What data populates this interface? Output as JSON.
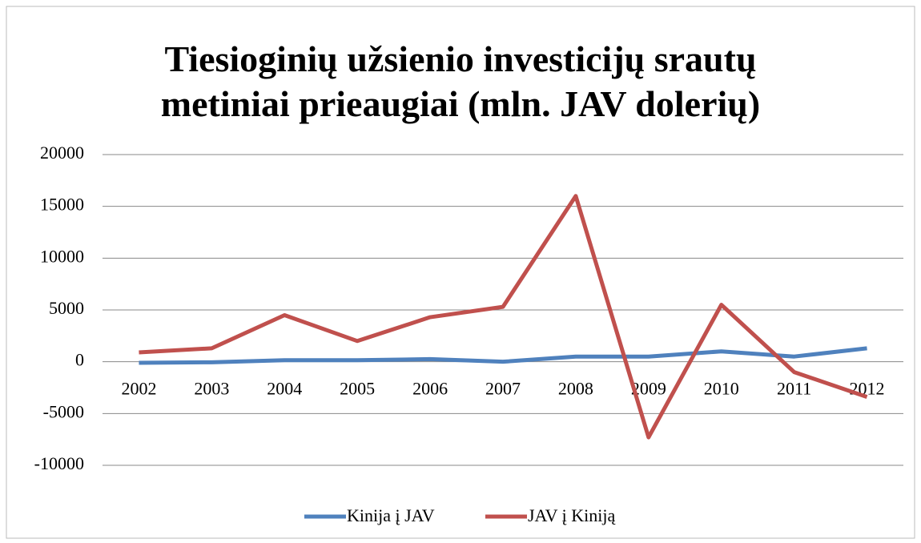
{
  "chart_data": {
    "type": "line",
    "title": "Tiesioginių užsienio investicijų srautų metiniai prieaugiai (mln. JAV dolerių)",
    "categories": [
      "2002",
      "2003",
      "2004",
      "2005",
      "2006",
      "2007",
      "2008",
      "2009",
      "2010",
      "2011",
      "2012"
    ],
    "series": [
      {
        "name": "Kinija į JAV",
        "color": "#4f81bd",
        "values": [
          -100,
          -50,
          150,
          150,
          250,
          0,
          500,
          500,
          1000,
          500,
          1300
        ]
      },
      {
        "name": "JAV į Kiniją",
        "color": "#c0504d",
        "values": [
          900,
          1300,
          4500,
          2000,
          4300,
          5300,
          16000,
          -7300,
          5500,
          -1000,
          -3400
        ]
      }
    ],
    "ylim": [
      -10000,
      20000
    ],
    "yticks": [
      -10000,
      -5000,
      0,
      5000,
      10000,
      15000,
      20000
    ],
    "grid": true,
    "legend": "bottom"
  }
}
